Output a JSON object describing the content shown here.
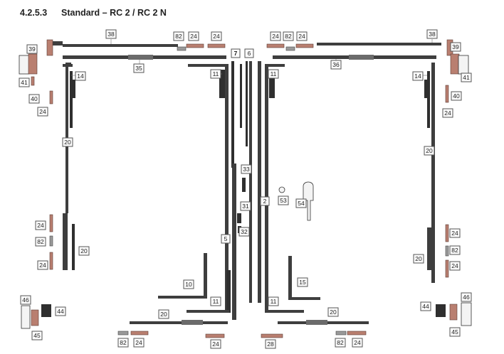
{
  "title": {
    "number": "4.2.5.3",
    "text": "Standard – RC 2 / RC 2 N"
  },
  "labels": {
    "l38": "38",
    "l82a": "82",
    "l24a": "24",
    "l24b": "24",
    "l7": "7",
    "l6": "6",
    "l24c": "24",
    "l82b": "82",
    "l24d": "24",
    "r38": "38",
    "r39": "39",
    "r41": "41",
    "r40": "40",
    "r24a": "24",
    "l39": "39",
    "l41": "41",
    "l40": "40",
    "l24e": "24",
    "l35": "35",
    "l14": "14",
    "l11a": "11",
    "r11a": "11",
    "r36": "36",
    "r14": "14",
    "l20a": "20",
    "r20a": "20",
    "l33": "33",
    "l2": "2",
    "l53": "53",
    "l54": "54",
    "l31": "31",
    "l32": "32",
    "l5": "5",
    "l24f": "24",
    "l82c": "82",
    "l24g": "24",
    "l20b": "20",
    "r24b": "24",
    "r82": "82",
    "r24c": "24",
    "r20b": "20",
    "l10": "10",
    "l15": "15",
    "l11b": "11",
    "r11b": "11",
    "l20c": "20",
    "r20c": "20",
    "l46": "46",
    "l44": "44",
    "l45": "45",
    "r46": "46",
    "r44": "44",
    "r45": "45",
    "b82a": "82",
    "b24a": "24",
    "b24b": "24",
    "b28": "28",
    "b82b": "82",
    "b24c": "24"
  },
  "colors": {
    "frame": "#3e3e3e",
    "brown_part": "#b97f70",
    "grey_part": "#9a9a9a"
  }
}
